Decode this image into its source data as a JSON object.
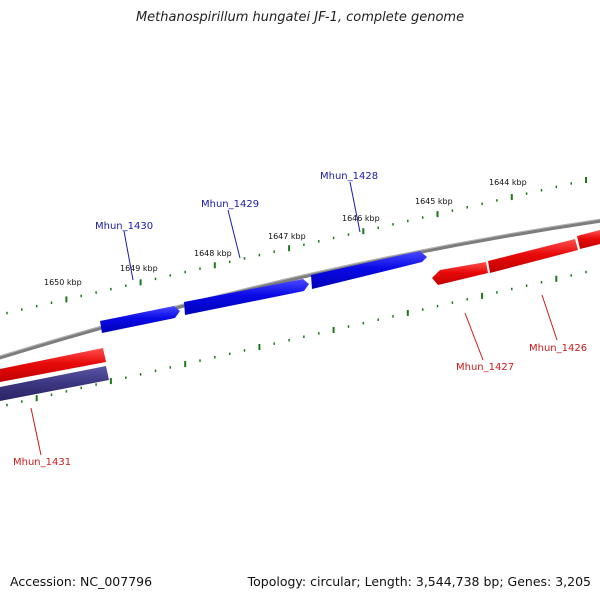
{
  "title": "Methanospirillum hungatei JF-1, complete genome",
  "footer": {
    "accession": "Accession: NC_007796",
    "summary": "Topology: circular; Length: 3,544,738 bp; Genes: 3,205"
  },
  "colors": {
    "forward_gene": "#0a0ae6",
    "reverse_gene": "#e80a0a",
    "reverse_gene_alt": "#3b3680",
    "backbone": "#808080",
    "ticks": "#1a7a1a",
    "forward_label": "#1a1aa8",
    "reverse_label": "#cc1a1a"
  },
  "kbp_labels": [
    "1650 kbp",
    "1649 kbp",
    "1648 kbp",
    "1647 kbp",
    "1646 kbp",
    "1645 kbp",
    "1644 kbp"
  ],
  "genes": [
    {
      "label": "Mhun_1430",
      "strand": "forward"
    },
    {
      "label": "Mhun_1429",
      "strand": "forward"
    },
    {
      "label": "Mhun_1428",
      "strand": "forward"
    },
    {
      "label": "Mhun_1427",
      "strand": "reverse"
    },
    {
      "label": "Mhun_1426",
      "strand": "reverse"
    },
    {
      "label": "Mhun_1431",
      "strand": "reverse"
    }
  ]
}
